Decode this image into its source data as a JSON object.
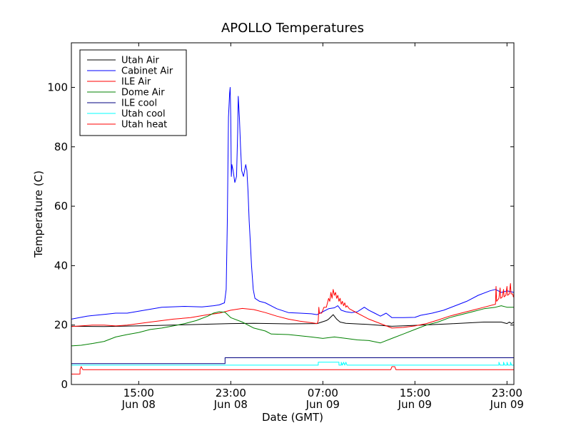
{
  "chart_data": {
    "type": "line",
    "title": "APOLLO Temperatures",
    "xlabel": "Date (GMT)",
    "ylabel": "Temperature (C)",
    "x_unit": "hours since Jun 08 00:00 GMT",
    "xlim": [
      9.15,
      47.6
    ],
    "ylim": [
      0,
      115
    ],
    "yticks": [
      0,
      20,
      40,
      60,
      80,
      100
    ],
    "xticks": [
      {
        "t": 15,
        "line1": "15:00",
        "line2": "Jun 08"
      },
      {
        "t": 23,
        "line1": "23:00",
        "line2": "Jun 08"
      },
      {
        "t": 31,
        "line1": "07:00",
        "line2": "Jun 09"
      },
      {
        "t": 39,
        "line1": "15:00",
        "line2": "Jun 09"
      },
      {
        "t": 47,
        "line1": "23:00",
        "line2": "Jun 09"
      }
    ],
    "legend_position": "top-left",
    "series": [
      {
        "name": "Utah Air",
        "color": "#000000",
        "points": [
          [
            9.15,
            19.6
          ],
          [
            12,
            19.5
          ],
          [
            16,
            19.8
          ],
          [
            20,
            20.2
          ],
          [
            23,
            20.5
          ],
          [
            25,
            20.6
          ],
          [
            28,
            20.4
          ],
          [
            30.5,
            20.5
          ],
          [
            31.3,
            21.5
          ],
          [
            31.5,
            22
          ],
          [
            31.9,
            23.5
          ],
          [
            32.2,
            22
          ],
          [
            32.5,
            21
          ],
          [
            33,
            20.6
          ],
          [
            35,
            20.2
          ],
          [
            37,
            19.6
          ],
          [
            39,
            19.9
          ],
          [
            42,
            20.4
          ],
          [
            45,
            21
          ],
          [
            46.5,
            21
          ],
          [
            47,
            20.5
          ],
          [
            47.2,
            21
          ],
          [
            47.4,
            20.5
          ],
          [
            47.6,
            21
          ]
        ]
      },
      {
        "name": "Cabinet Air",
        "color": "#0000ff",
        "points": [
          [
            9.15,
            22
          ],
          [
            10.5,
            23
          ],
          [
            12,
            23.6
          ],
          [
            13,
            24
          ],
          [
            14,
            24
          ],
          [
            15.5,
            25
          ],
          [
            17,
            26
          ],
          [
            19,
            26.3
          ],
          [
            20.5,
            26.1
          ],
          [
            21.5,
            26.5
          ],
          [
            22,
            26.8
          ],
          [
            22.45,
            27.5
          ],
          [
            22.6,
            32
          ],
          [
            22.7,
            55
          ],
          [
            22.8,
            90
          ],
          [
            22.9,
            98
          ],
          [
            22.95,
            100
          ],
          [
            23.0,
            90
          ],
          [
            23.05,
            70
          ],
          [
            23.1,
            74
          ],
          [
            23.2,
            72
          ],
          [
            23.35,
            68
          ],
          [
            23.5,
            70
          ],
          [
            23.6,
            85
          ],
          [
            23.65,
            97
          ],
          [
            23.75,
            90
          ],
          [
            23.85,
            80
          ],
          [
            23.95,
            72
          ],
          [
            24.1,
            70
          ],
          [
            24.2,
            72
          ],
          [
            24.3,
            74
          ],
          [
            24.4,
            72
          ],
          [
            24.5,
            65
          ],
          [
            24.6,
            55
          ],
          [
            24.7,
            48
          ],
          [
            24.8,
            40
          ],
          [
            24.95,
            32
          ],
          [
            25.1,
            29
          ],
          [
            25.5,
            28
          ],
          [
            26,
            27.5
          ],
          [
            27,
            25.5
          ],
          [
            28,
            24.2
          ],
          [
            29,
            24
          ],
          [
            30,
            23.8
          ],
          [
            30.5,
            23.5
          ],
          [
            31,
            24.5
          ],
          [
            31.5,
            25.5
          ],
          [
            32,
            25.8
          ],
          [
            32.3,
            26.5
          ],
          [
            32.6,
            25
          ],
          [
            33,
            24.5
          ],
          [
            33.5,
            24.2
          ],
          [
            34,
            24.5
          ],
          [
            34.6,
            26
          ],
          [
            35,
            25
          ],
          [
            35.5,
            24
          ],
          [
            36,
            23
          ],
          [
            36.5,
            24
          ],
          [
            37,
            22.5
          ],
          [
            38,
            22.5
          ],
          [
            39,
            22.6
          ],
          [
            39.5,
            23.3
          ],
          [
            40.5,
            24
          ],
          [
            41.5,
            25
          ],
          [
            42.5,
            26.5
          ],
          [
            43.5,
            28
          ],
          [
            44.5,
            30
          ],
          [
            45.5,
            31.5
          ],
          [
            46,
            32
          ],
          [
            46.5,
            31
          ],
          [
            47,
            31.5
          ],
          [
            47.6,
            31
          ]
        ]
      },
      {
        "name": "ILE Air",
        "color": "#ff0000",
        "points": [
          [
            9.15,
            19.5
          ],
          [
            11,
            20
          ],
          [
            12,
            20
          ],
          [
            13,
            19.7
          ],
          [
            14,
            20
          ],
          [
            16,
            21
          ],
          [
            18,
            22
          ],
          [
            19.5,
            22.5
          ],
          [
            21,
            23.5
          ],
          [
            22,
            24
          ],
          [
            23,
            25
          ],
          [
            24,
            25.6
          ],
          [
            25,
            25.2
          ],
          [
            26,
            24.2
          ],
          [
            27,
            23
          ],
          [
            28,
            22
          ],
          [
            29,
            21.3
          ],
          [
            30,
            20.8
          ],
          [
            30.5,
            20.5
          ],
          [
            30.6,
            21.5
          ],
          [
            30.65,
            26
          ],
          [
            30.7,
            24
          ],
          [
            30.9,
            24
          ],
          [
            31.1,
            26
          ],
          [
            31.3,
            26
          ],
          [
            31.5,
            29
          ],
          [
            31.6,
            28
          ],
          [
            31.7,
            31
          ],
          [
            31.8,
            29
          ],
          [
            31.9,
            32
          ],
          [
            32.0,
            30
          ],
          [
            32.1,
            31
          ],
          [
            32.2,
            29
          ],
          [
            32.3,
            30
          ],
          [
            32.4,
            28
          ],
          [
            32.5,
            29
          ],
          [
            32.6,
            27
          ],
          [
            32.7,
            28
          ],
          [
            32.8,
            26.5
          ],
          [
            32.9,
            27.5
          ],
          [
            33.0,
            26
          ],
          [
            33.1,
            26.5
          ],
          [
            33.3,
            25.5
          ],
          [
            34,
            24
          ],
          [
            35,
            22
          ],
          [
            36,
            20.5
          ],
          [
            37,
            19
          ],
          [
            38,
            19.2
          ],
          [
            39,
            19.7
          ],
          [
            40,
            20.5
          ],
          [
            41,
            21.7
          ],
          [
            42,
            23
          ],
          [
            43,
            24
          ],
          [
            44,
            25
          ],
          [
            45,
            26
          ],
          [
            46,
            27
          ],
          [
            46.05,
            33
          ],
          [
            46.1,
            28
          ],
          [
            46.3,
            29
          ],
          [
            46.4,
            32.5
          ],
          [
            46.45,
            29
          ],
          [
            46.6,
            29.5
          ],
          [
            46.7,
            32
          ],
          [
            46.75,
            29.5
          ],
          [
            46.9,
            30
          ],
          [
            47.0,
            33
          ],
          [
            47.05,
            30
          ],
          [
            47.2,
            30.5
          ],
          [
            47.3,
            34
          ],
          [
            47.35,
            30.5
          ],
          [
            47.5,
            30.5
          ],
          [
            47.55,
            29.5
          ],
          [
            47.6,
            30
          ]
        ]
      },
      {
        "name": "Dome Air",
        "color": "#008000",
        "points": [
          [
            9.15,
            13
          ],
          [
            10,
            13.2
          ],
          [
            11,
            13.8
          ],
          [
            12,
            14.5
          ],
          [
            13,
            16
          ],
          [
            14,
            16.8
          ],
          [
            15,
            17.5
          ],
          [
            16,
            18.5
          ],
          [
            17,
            19
          ],
          [
            18,
            19.7
          ],
          [
            19,
            20.5
          ],
          [
            20,
            21.5
          ],
          [
            21,
            23
          ],
          [
            21.5,
            24
          ],
          [
            22,
            24.5
          ],
          [
            22.5,
            24.3
          ],
          [
            23,
            22.5
          ],
          [
            24,
            21
          ],
          [
            25,
            19
          ],
          [
            26,
            18
          ],
          [
            26.5,
            17
          ],
          [
            28,
            16.8
          ],
          [
            30,
            16
          ],
          [
            31,
            15.5
          ],
          [
            32,
            16
          ],
          [
            33,
            15.5
          ],
          [
            34,
            15
          ],
          [
            35,
            14.8
          ],
          [
            36,
            14
          ],
          [
            37,
            15.5
          ],
          [
            38,
            17
          ],
          [
            39,
            18.5
          ],
          [
            40,
            20
          ],
          [
            41,
            21
          ],
          [
            42,
            22.5
          ],
          [
            43,
            23.5
          ],
          [
            44,
            24.5
          ],
          [
            45,
            25.5
          ],
          [
            46,
            26
          ],
          [
            46.5,
            26.5
          ],
          [
            47,
            26
          ],
          [
            47.6,
            26
          ]
        ]
      },
      {
        "name": "ILE cool",
        "color": "#000080",
        "points": [
          [
            9.15,
            7
          ],
          [
            22.5,
            7
          ],
          [
            22.5,
            9
          ],
          [
            47.6,
            9
          ]
        ]
      },
      {
        "name": "Utah cool",
        "color": "#00ffff",
        "points": [
          [
            9.15,
            6.5
          ],
          [
            30.6,
            6.5
          ],
          [
            30.6,
            7.5
          ],
          [
            32.4,
            7.5
          ],
          [
            32.4,
            6.5
          ],
          [
            32.6,
            6.5
          ],
          [
            32.6,
            7.5
          ],
          [
            32.7,
            6.5
          ],
          [
            32.8,
            7.5
          ],
          [
            32.9,
            6.5
          ],
          [
            33.0,
            7.5
          ],
          [
            33.1,
            6.5
          ],
          [
            46.3,
            6.5
          ],
          [
            46.3,
            7.5
          ],
          [
            46.4,
            6.5
          ],
          [
            46.7,
            6.5
          ],
          [
            46.7,
            7.5
          ],
          [
            46.8,
            6.5
          ],
          [
            47.0,
            6.5
          ],
          [
            47.0,
            7.5
          ],
          [
            47.1,
            6.5
          ],
          [
            47.3,
            6.5
          ],
          [
            47.3,
            7.5
          ],
          [
            47.4,
            6.5
          ],
          [
            47.6,
            6.5
          ]
        ]
      },
      {
        "name": "Utah heat",
        "color": "#ff0000",
        "points": [
          [
            9.15,
            3.5
          ],
          [
            9.9,
            3.5
          ],
          [
            9.9,
            5
          ],
          [
            10,
            6
          ],
          [
            10.15,
            5
          ],
          [
            36.9,
            5
          ],
          [
            37.0,
            6
          ],
          [
            37.25,
            6
          ],
          [
            37.35,
            5
          ],
          [
            47.6,
            5
          ]
        ]
      }
    ]
  }
}
